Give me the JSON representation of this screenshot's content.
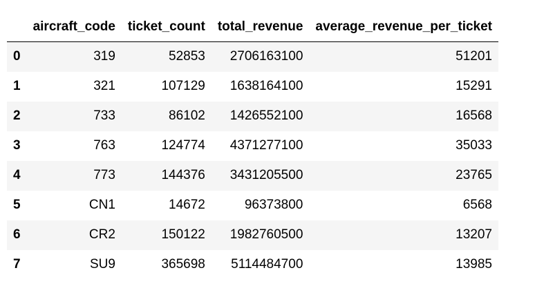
{
  "table": {
    "index_header": "",
    "columns": [
      "aircraft_code",
      "ticket_count",
      "total_revenue",
      "average_revenue_per_ticket"
    ],
    "rows": [
      {
        "index": "0",
        "cells": [
          "319",
          "52853",
          "2706163100",
          "51201"
        ]
      },
      {
        "index": "1",
        "cells": [
          "321",
          "107129",
          "1638164100",
          "15291"
        ]
      },
      {
        "index": "2",
        "cells": [
          "733",
          "86102",
          "1426552100",
          "16568"
        ]
      },
      {
        "index": "3",
        "cells": [
          "763",
          "124774",
          "4371277100",
          "35033"
        ]
      },
      {
        "index": "4",
        "cells": [
          "773",
          "144376",
          "3431205500",
          "23765"
        ]
      },
      {
        "index": "5",
        "cells": [
          "CN1",
          "14672",
          "96373800",
          "6568"
        ]
      },
      {
        "index": "6",
        "cells": [
          "CR2",
          "150122",
          "1982760500",
          "13207"
        ]
      },
      {
        "index": "7",
        "cells": [
          "SU9",
          "365698",
          "5114484700",
          "13985"
        ]
      }
    ]
  }
}
